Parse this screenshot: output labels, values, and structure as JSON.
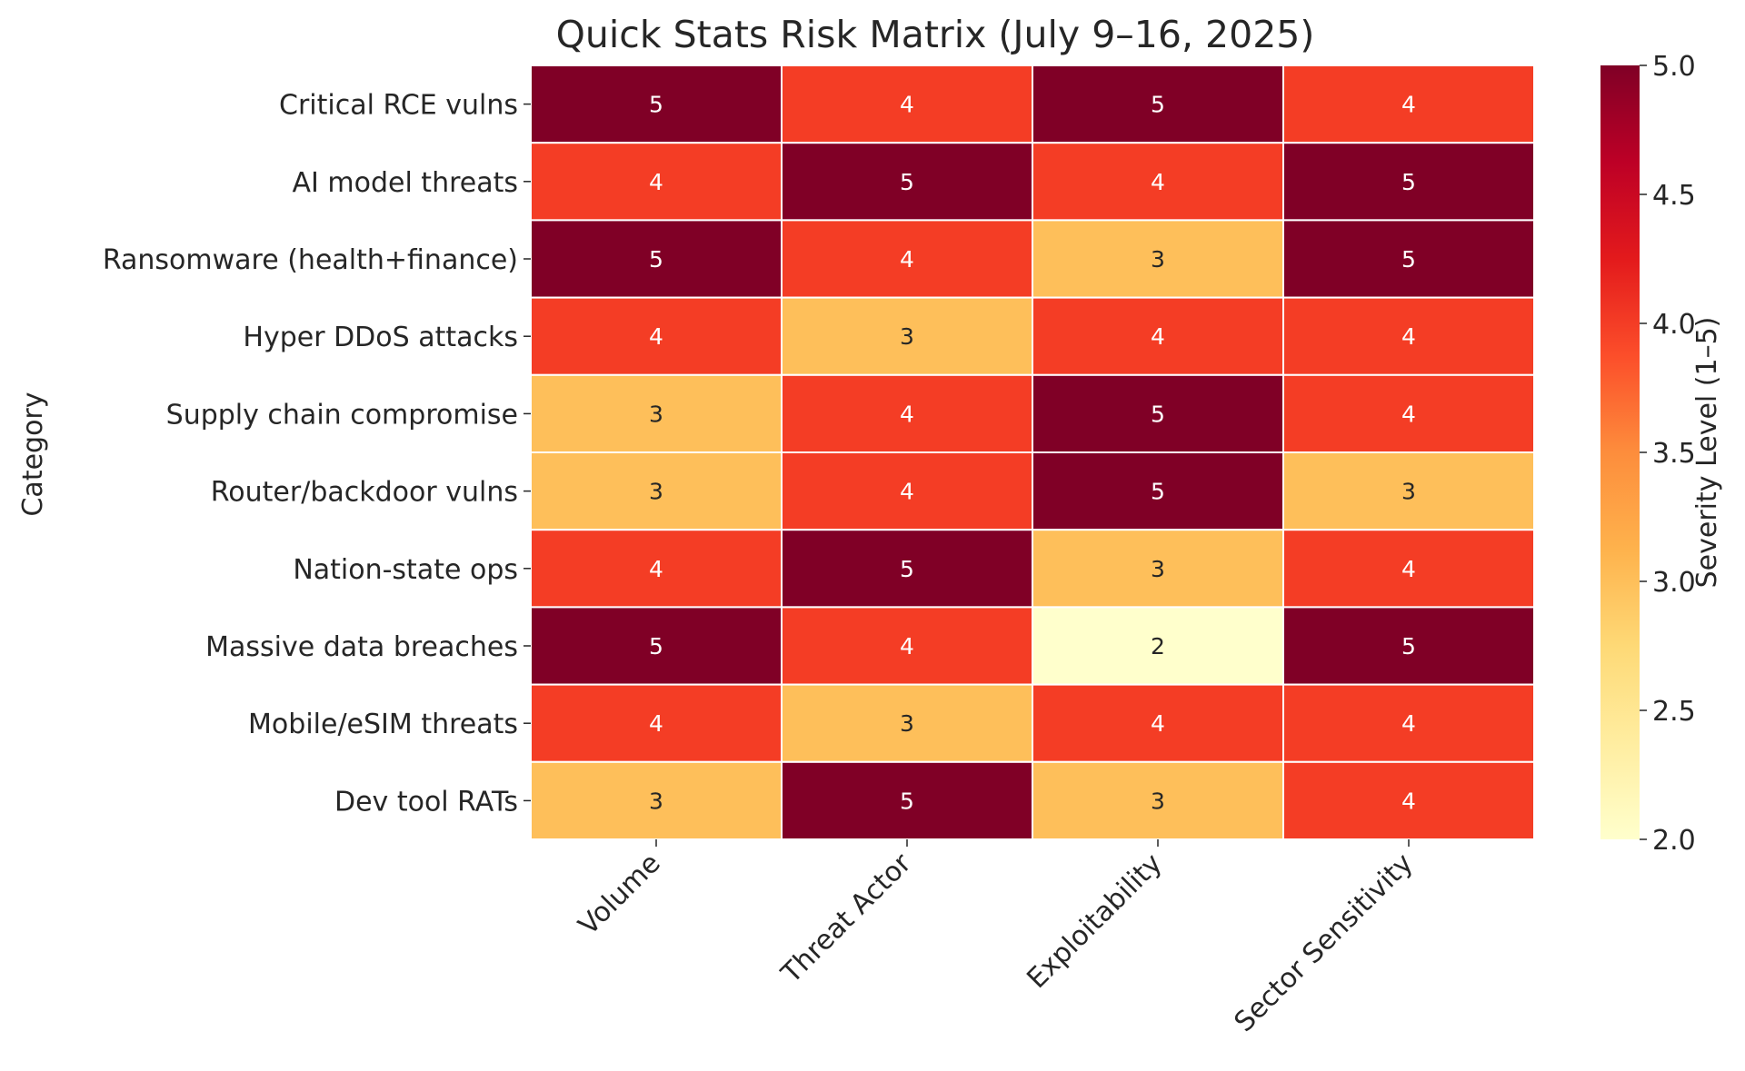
{
  "chart_data": {
    "type": "heatmap",
    "title": "Quick Stats Risk Matrix (July 9–16, 2025)",
    "xlabel": "",
    "ylabel": "Category",
    "x_categories": [
      "Volume",
      "Threat Actor",
      "Exploitability",
      "Sector Sensitivity"
    ],
    "y_categories": [
      "Critical RCE vulns",
      "AI model threats",
      "Ransomware (health+finance)",
      "Hyper DDoS attacks",
      "Supply chain compromise",
      "Router/backdoor vulns",
      "Nation-state ops",
      "Massive data breaches",
      "Mobile/eSIM threats",
      "Dev tool RATs"
    ],
    "values": [
      [
        5,
        4,
        5,
        4
      ],
      [
        4,
        5,
        4,
        5
      ],
      [
        5,
        4,
        3,
        5
      ],
      [
        4,
        3,
        4,
        4
      ],
      [
        3,
        4,
        5,
        4
      ],
      [
        3,
        4,
        5,
        3
      ],
      [
        4,
        5,
        3,
        4
      ],
      [
        5,
        4,
        2,
        5
      ],
      [
        4,
        3,
        4,
        4
      ],
      [
        3,
        5,
        3,
        4
      ]
    ],
    "colorbar": {
      "label": "Severity Level (1–5)",
      "min": 2.0,
      "max": 5.0,
      "ticks": [
        "2.0",
        "2.5",
        "3.0",
        "3.5",
        "4.0",
        "4.5",
        "5.0"
      ],
      "colormap": "YlOrRd",
      "color_stops": [
        "#ffffcc",
        "#ffeda0",
        "#fed976",
        "#feb24c",
        "#fd8d3c",
        "#fc4e2a",
        "#e31a1c",
        "#bd0026",
        "#800026"
      ]
    },
    "annotations": true,
    "grid": false,
    "cell_border_color": "#ffffff",
    "legend_placement": "right"
  }
}
